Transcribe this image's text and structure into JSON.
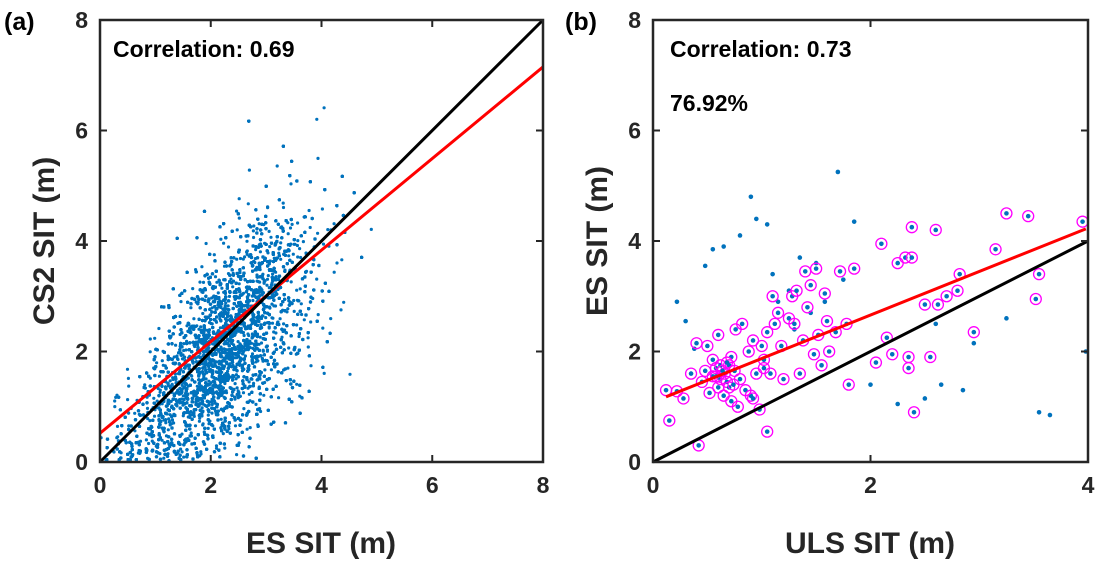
{
  "chart_data": [
    {
      "type": "scatter",
      "panel_label": "(a)",
      "xlabel": "ES SIT (m)",
      "ylabel": "CS2 SIT (m)",
      "xlim": [
        0,
        8
      ],
      "ylim": [
        0,
        8
      ],
      "xticks": [
        "0",
        "2",
        "4",
        "6",
        "8"
      ],
      "yticks": [
        "0",
        "2",
        "4",
        "6",
        "8"
      ],
      "annotations": [
        "Correlation: 0.69"
      ],
      "grid": false,
      "colors": {
        "points": "#0072bd",
        "fit": "#ff0000",
        "identity": "#000000"
      },
      "series": [
        {
          "kind": "scatter",
          "approx_count": 9000,
          "center": [
            2.0,
            1.8
          ],
          "correlation": 0.69
        },
        {
          "kind": "fit_line",
          "x": [
            0,
            8
          ],
          "y": [
            0.52,
            7.15
          ]
        },
        {
          "kind": "one_to_one_line",
          "x": [
            0,
            8
          ],
          "y": [
            0,
            8
          ]
        }
      ]
    },
    {
      "type": "scatter",
      "panel_label": "(b)",
      "xlabel": "ULS SIT (m)",
      "ylabel": "ES SIT (m)",
      "xlim": [
        0,
        4
      ],
      "ylim": [
        0,
        8
      ],
      "xticks": [
        "0",
        "2",
        "4"
      ],
      "yticks": [
        "0",
        "2",
        "4",
        "6",
        "8"
      ],
      "annotations": [
        "Correlation: 0.73",
        "76.92%"
      ],
      "grid": false,
      "colors": {
        "points": "#0072bd",
        "circles": "#ff00ff",
        "fit": "#ff0000",
        "identity": "#000000"
      },
      "series": [
        {
          "kind": "circled_points",
          "x": [
            0.12,
            0.15,
            0.22,
            0.28,
            0.35,
            0.4,
            0.42,
            0.45,
            0.48,
            0.5,
            0.52,
            0.55,
            0.55,
            0.58,
            0.6,
            0.6,
            0.62,
            0.62,
            0.65,
            0.66,
            0.68,
            0.7,
            0.7,
            0.72,
            0.72,
            0.75,
            0.76,
            0.78,
            0.8,
            0.82,
            0.85,
            0.88,
            0.9,
            0.92,
            0.95,
            0.98,
            1.0,
            1.02,
            1.05,
            1.05,
            1.08,
            1.1,
            1.12,
            1.15,
            1.18,
            1.2,
            1.25,
            1.28,
            1.3,
            1.32,
            1.35,
            1.38,
            1.4,
            1.42,
            1.45,
            1.48,
            1.5,
            1.52,
            1.55,
            1.58,
            1.6,
            1.62,
            1.68,
            1.72,
            1.78,
            1.8,
            1.85,
            2.05,
            2.1,
            2.15,
            2.2,
            2.25,
            2.32,
            2.35,
            2.35,
            2.38,
            2.38,
            2.4,
            2.5,
            2.55,
            2.6,
            2.62,
            2.7,
            2.8,
            2.82,
            2.95,
            3.15,
            3.25,
            3.45,
            3.52,
            3.55,
            3.95,
            0.58,
            0.64,
            0.74,
            0.68,
            0.92,
            1.02
          ],
          "y": [
            1.3,
            0.75,
            1.28,
            1.15,
            1.6,
            2.15,
            0.3,
            1.45,
            1.65,
            2.1,
            1.25,
            1.85,
            1.55,
            1.7,
            2.3,
            1.35,
            1.5,
            1.75,
            1.2,
            1.6,
            1.45,
            1.35,
            1.75,
            1.1,
            1.9,
            1.65,
            2.4,
            1.0,
            1.5,
            2.5,
            1.3,
            2.0,
            1.2,
            2.2,
            1.6,
            0.95,
            2.1,
            1.7,
            0.55,
            2.35,
            1.6,
            3.0,
            2.5,
            2.7,
            2.1,
            1.5,
            2.6,
            3.0,
            2.5,
            3.1,
            1.6,
            2.2,
            3.45,
            2.8,
            3.2,
            1.95,
            3.5,
            2.3,
            1.75,
            3.05,
            2.55,
            2.0,
            2.35,
            3.45,
            2.5,
            1.4,
            3.5,
            1.8,
            3.95,
            2.25,
            1.95,
            3.6,
            3.7,
            1.7,
            1.9,
            4.25,
            3.7,
            0.9,
            2.85,
            1.9,
            4.2,
            2.85,
            3.0,
            3.1,
            3.4,
            2.35,
            3.85,
            4.5,
            4.45,
            2.95,
            3.4,
            4.35,
            1.55,
            1.65,
            1.4,
            1.8,
            1.15,
            1.85
          ]
        },
        {
          "kind": "plain_points",
          "x": [
            0.22,
            0.3,
            0.55,
            0.65,
            0.8,
            0.95,
            1.05,
            1.1,
            1.15,
            1.25,
            1.35,
            1.45,
            1.5,
            1.58,
            1.7,
            1.75,
            1.85,
            2.0,
            2.25,
            2.5,
            2.65,
            2.85,
            2.95,
            3.25,
            3.55,
            3.65,
            3.98,
            0.48,
            0.9,
            1.3,
            2.6,
            0.38
          ],
          "y": [
            2.9,
            2.55,
            3.85,
            3.9,
            4.1,
            4.4,
            4.3,
            3.4,
            2.9,
            3.1,
            3.7,
            2.7,
            3.6,
            2.9,
            5.25,
            3.3,
            4.35,
            1.4,
            1.05,
            1.15,
            1.4,
            1.3,
            2.15,
            2.6,
            0.9,
            0.85,
            2.0,
            3.55,
            4.8,
            2.4,
            2.5,
            2.05
          ]
        },
        {
          "kind": "fit_line",
          "x": [
            0.12,
            3.98
          ],
          "y": [
            1.18,
            4.22
          ]
        },
        {
          "kind": "one_to_one_line",
          "x": [
            0,
            4
          ],
          "y": [
            0,
            4
          ]
        }
      ]
    }
  ]
}
